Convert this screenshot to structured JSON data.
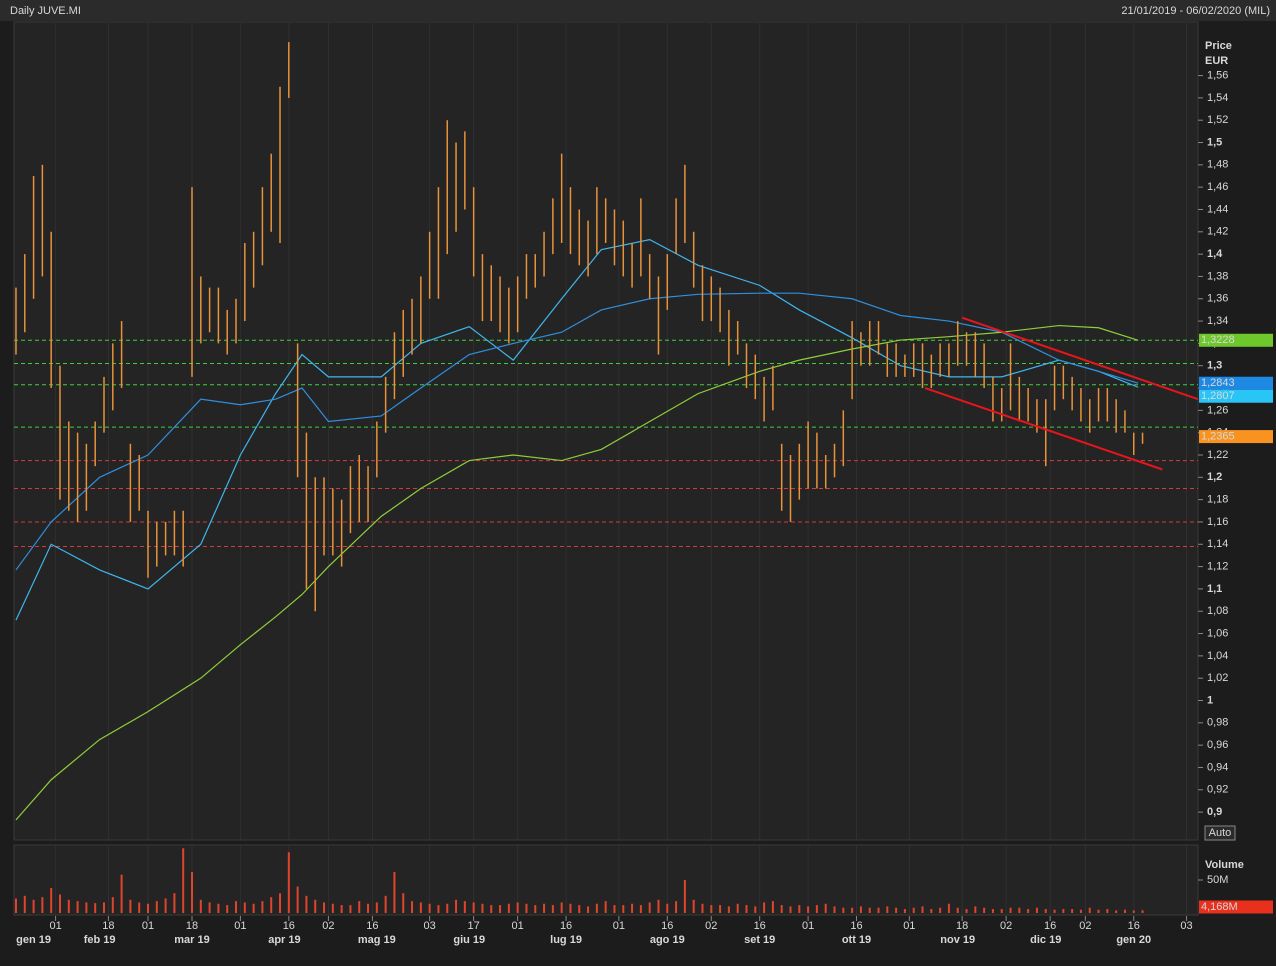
{
  "chart_data": {
    "type": "ohlc",
    "title": "Daily JUVE.MI",
    "subtitle": "21/01/2019 - 06/02/2020 (MIL)",
    "y_label": "Price",
    "y_unit": "EUR",
    "auto_label": "Auto",
    "color": "#e8923a",
    "x": [
      0,
      2,
      4,
      6,
      8,
      10,
      12,
      14,
      16,
      18,
      20,
      22,
      24,
      26,
      28,
      30,
      32,
      34,
      36,
      38,
      40,
      42,
      44,
      46,
      48,
      50,
      52,
      54,
      56,
      58,
      60,
      62,
      64,
      66,
      68,
      70,
      72,
      74,
      76,
      78,
      80,
      82,
      84,
      86,
      88,
      90,
      92,
      94,
      96,
      98,
      100,
      102,
      104,
      106,
      108,
      110,
      112,
      114,
      116,
      118,
      120,
      122,
      124,
      126,
      128,
      130,
      132,
      134,
      136,
      138,
      140,
      142,
      144,
      146,
      148,
      150,
      152,
      154,
      156,
      158,
      160,
      162,
      164,
      166,
      168,
      170,
      172,
      174,
      176,
      178,
      180,
      182,
      184,
      186,
      188,
      190,
      192,
      194,
      196,
      198,
      200,
      202,
      204,
      206,
      208,
      210,
      212,
      214,
      216,
      218,
      220,
      222,
      224,
      226,
      228,
      230,
      232,
      234,
      236,
      238,
      240,
      242,
      244,
      246,
      248,
      250,
      252,
      254,
      256
    ],
    "high": [
      1.37,
      1.4,
      1.47,
      1.48,
      1.42,
      1.3,
      1.25,
      1.24,
      1.23,
      1.25,
      1.29,
      1.32,
      1.34,
      1.23,
      1.22,
      1.17,
      1.16,
      1.16,
      1.17,
      1.17,
      1.46,
      1.38,
      1.37,
      1.37,
      1.35,
      1.36,
      1.41,
      1.42,
      1.46,
      1.49,
      1.55,
      1.59,
      1.32,
      1.24,
      1.2,
      1.2,
      1.19,
      1.18,
      1.21,
      1.22,
      1.21,
      1.25,
      1.29,
      1.33,
      1.35,
      1.36,
      1.38,
      1.42,
      1.46,
      1.52,
      1.5,
      1.51,
      1.46,
      1.4,
      1.39,
      1.38,
      1.37,
      1.38,
      1.4,
      1.4,
      1.42,
      1.45,
      1.49,
      1.46,
      1.44,
      1.43,
      1.46,
      1.45,
      1.44,
      1.43,
      1.41,
      1.45,
      1.4,
      1.38,
      1.4,
      1.45,
      1.48,
      1.42,
      1.39,
      1.38,
      1.37,
      1.35,
      1.34,
      1.32,
      1.31,
      1.29,
      1.3,
      1.23,
      1.22,
      1.23,
      1.25,
      1.24,
      1.22,
      1.23,
      1.26,
      1.34,
      1.33,
      1.34,
      1.34,
      1.32,
      1.32,
      1.31,
      1.32,
      1.32,
      1.31,
      1.32,
      1.32,
      1.34,
      1.33,
      1.33,
      1.32,
      1.29,
      1.28,
      1.32,
      1.29,
      1.28,
      1.27,
      1.27,
      1.3,
      1.3,
      1.29,
      1.28,
      1.27,
      1.28,
      1.28,
      1.27,
      1.26,
      1.24,
      1.24
    ],
    "low": [
      1.31,
      1.33,
      1.36,
      1.38,
      1.28,
      1.18,
      1.17,
      1.16,
      1.17,
      1.21,
      1.24,
      1.26,
      1.28,
      1.16,
      1.17,
      1.11,
      1.12,
      1.13,
      1.13,
      1.12,
      1.29,
      1.32,
      1.33,
      1.32,
      1.31,
      1.32,
      1.34,
      1.37,
      1.39,
      1.42,
      1.41,
      1.54,
      1.2,
      1.1,
      1.08,
      1.13,
      1.13,
      1.12,
      1.15,
      1.16,
      1.16,
      1.2,
      1.24,
      1.27,
      1.29,
      1.31,
      1.32,
      1.36,
      1.36,
      1.4,
      1.42,
      1.44,
      1.38,
      1.34,
      1.34,
      1.33,
      1.32,
      1.33,
      1.36,
      1.37,
      1.38,
      1.4,
      1.41,
      1.4,
      1.39,
      1.38,
      1.4,
      1.41,
      1.39,
      1.38,
      1.37,
      1.38,
      1.36,
      1.31,
      1.35,
      1.4,
      1.41,
      1.37,
      1.34,
      1.34,
      1.33,
      1.3,
      1.31,
      1.28,
      1.27,
      1.25,
      1.26,
      1.17,
      1.16,
      1.18,
      1.19,
      1.19,
      1.19,
      1.2,
      1.21,
      1.27,
      1.3,
      1.3,
      1.31,
      1.29,
      1.29,
      1.29,
      1.29,
      1.28,
      1.28,
      1.29,
      1.29,
      1.3,
      1.3,
      1.29,
      1.28,
      1.25,
      1.25,
      1.26,
      1.25,
      1.25,
      1.24,
      1.21,
      1.26,
      1.27,
      1.26,
      1.25,
      1.24,
      1.25,
      1.25,
      1.24,
      1.24,
      1.22,
      1.23
    ],
    "xlim": [
      -0.45,
      268.6
    ],
    "ylim": [
      0.875,
      1.608
    ],
    "yticks": [
      {
        "value": 0.9,
        "label": "0,9"
      },
      {
        "value": 0.92,
        "label": "0,92"
      },
      {
        "value": 0.94,
        "label": "0,94"
      },
      {
        "value": 0.96,
        "label": "0,96"
      },
      {
        "value": 0.98,
        "label": "0,98"
      },
      1,
      {
        "value": 1.02,
        "label": "1,02"
      },
      {
        "value": 1.04,
        "label": "1,04"
      },
      {
        "value": 1.06,
        "label": "1,06"
      },
      {
        "value": 1.08,
        "label": "1,08"
      },
      {
        "value": 1.1,
        "label": "1,1"
      },
      {
        "value": 1.12,
        "label": "1,12"
      },
      {
        "value": 1.14,
        "label": "1,14"
      },
      {
        "value": 1.16,
        "label": "1,16"
      },
      {
        "value": 1.18,
        "label": "1,18"
      },
      {
        "value": 1.2,
        "label": "1,2"
      },
      {
        "value": 1.22,
        "label": "1,22"
      },
      {
        "value": 1.24,
        "label": "1,24"
      },
      {
        "value": 1.26,
        "label": "1,26"
      },
      {
        "value": 1.28,
        "label": "1,28"
      },
      {
        "value": 1.3,
        "label": "1,3"
      },
      {
        "value": 1.32,
        "label": "1,32"
      },
      {
        "value": 1.34,
        "label": "1,34"
      },
      {
        "value": 1.36,
        "label": "1,36"
      },
      {
        "value": 1.38,
        "label": "1,38"
      },
      {
        "value": 1.4,
        "label": "1,4"
      },
      {
        "value": 1.42,
        "label": "1,42"
      },
      {
        "value": 1.44,
        "label": "1,44"
      },
      {
        "value": 1.46,
        "label": "1,46"
      },
      {
        "value": 1.48,
        "label": "1,48"
      },
      {
        "value": 1.5,
        "label": "1,5"
      },
      {
        "value": 1.52,
        "label": "1,52"
      },
      {
        "value": 1.54,
        "label": "1,54"
      },
      {
        "value": 1.56,
        "label": "1,56"
      }
    ],
    "xticks": [
      {
        "value": 9,
        "label": "01"
      },
      {
        "value": 21,
        "label": "18"
      },
      {
        "value": 30,
        "label": "01"
      },
      {
        "value": 40,
        "label": "18"
      },
      {
        "value": 51,
        "label": "01"
      },
      {
        "value": 62,
        "label": "16"
      },
      {
        "value": 71,
        "label": "02"
      },
      {
        "value": 81,
        "label": "16"
      },
      {
        "value": 94,
        "label": "03"
      },
      {
        "value": 104,
        "label": "17"
      },
      {
        "value": 114,
        "label": "01"
      },
      {
        "value": 125,
        "label": "16"
      },
      {
        "value": 137,
        "label": "01"
      },
      {
        "value": 148,
        "label": "16"
      },
      {
        "value": 158,
        "label": "02"
      },
      {
        "value": 169,
        "label": "16"
      },
      {
        "value": 180,
        "label": "01"
      },
      {
        "value": 191,
        "label": "16"
      },
      {
        "value": 203,
        "label": "01"
      },
      {
        "value": 215,
        "label": "18"
      },
      {
        "value": 225,
        "label": "02"
      },
      {
        "value": 235,
        "label": "16"
      },
      {
        "value": 243,
        "label": "02"
      },
      {
        "value": 254,
        "label": "16"
      },
      {
        "value": 266,
        "label": "03"
      }
    ],
    "month_ticks": [
      {
        "value": 4,
        "label": "gen 19"
      },
      {
        "value": 19,
        "label": "feb 19"
      },
      {
        "value": 40,
        "label": "mar 19"
      },
      {
        "value": 61,
        "label": "apr 19"
      },
      {
        "value": 82,
        "label": "mag 19"
      },
      {
        "value": 103,
        "label": "giu 19"
      },
      {
        "value": 125,
        "label": "lug 19"
      },
      {
        "value": 148,
        "label": "ago 19"
      },
      {
        "value": 169,
        "label": "set 19"
      },
      {
        "value": 191,
        "label": "ott 19"
      },
      {
        "value": 214,
        "label": "nov 19"
      },
      {
        "value": 234,
        "label": "dic 19"
      },
      {
        "value": 254,
        "label": "gen 20"
      }
    ],
    "moving_averages": {
      "x": [
        0,
        8,
        19,
        30,
        42,
        51,
        59,
        65,
        71,
        83,
        92,
        103,
        113,
        124,
        133,
        144,
        155,
        169,
        178,
        190,
        201,
        212,
        224,
        237,
        246,
        255
      ],
      "series": [
        {
          "color": "#3fb6ee",
          "values": [
            1.072,
            1.14,
            1.117,
            1.1,
            1.14,
            1.22,
            1.275,
            1.31,
            1.29,
            1.29,
            1.32,
            1.335,
            1.305,
            1.36,
            1.404,
            1.413,
            1.39,
            1.372,
            1.35,
            1.325,
            1.3,
            1.29,
            1.29,
            1.305,
            1.295,
            1.2807
          ]
        },
        {
          "color": "#2f8fde",
          "values": [
            1.117,
            1.16,
            1.2,
            1.22,
            1.27,
            1.265,
            1.27,
            1.28,
            1.25,
            1.255,
            1.28,
            1.31,
            1.32,
            1.33,
            1.35,
            1.36,
            1.364,
            1.365,
            1.365,
            1.36,
            1.345,
            1.34,
            1.33,
            1.305,
            1.295,
            1.2843
          ]
        },
        {
          "color": "#8fcf3a",
          "values": [
            0.893,
            0.929,
            0.965,
            0.99,
            1.02,
            1.05,
            1.075,
            1.095,
            1.12,
            1.165,
            1.19,
            1.215,
            1.22,
            1.215,
            1.225,
            1.25,
            1.275,
            1.295,
            1.305,
            1.315,
            1.323,
            1.326,
            1.33,
            1.336,
            1.334,
            1.3228
          ]
        }
      ]
    },
    "levels": [
      {
        "value": 1.3228,
        "color": "#3ccf3c"
      },
      {
        "value": 1.302,
        "color": "#3ccf3c"
      },
      {
        "value": 1.283,
        "color": "#3ccf3c"
      },
      {
        "value": 1.245,
        "color": "#3ccf3c"
      },
      {
        "value": 1.215,
        "color": "#d23c3c"
      },
      {
        "value": 1.19,
        "color": "#d23c3c"
      },
      {
        "value": 1.16,
        "color": "#d23c3c"
      },
      {
        "value": 1.138,
        "color": "#d23c3c"
      }
    ],
    "trendlines": [
      {
        "color": "#e8151b",
        "x": [
          215,
          268.6
        ],
        "values": [
          1.343,
          1.27
        ]
      },
      {
        "color": "#e8151b",
        "x": [
          206.6,
          260.5
        ],
        "values": [
          1.28,
          1.207
        ]
      }
    ],
    "tags": [
      {
        "value": 1.3228,
        "label": "1,3228",
        "color": "#6ec72b"
      },
      {
        "value": 1.2843,
        "label": "1,2843",
        "color": "#1e88e5"
      },
      {
        "value": 1.2807,
        "label": "1,2807",
        "color": "#29c5f6"
      },
      {
        "value": 1.2365,
        "label": "1,2365",
        "color": "#f7931e"
      }
    ],
    "volume": {
      "label": "Volume",
      "color": "#e0452b",
      "ylim": [
        0,
        103
      ],
      "yticks": [
        {
          "value": 50,
          "label": "50M"
        }
      ],
      "last": {
        "value": 4.168,
        "label": "4,168M"
      },
      "values": [
        22,
        26,
        20,
        24,
        38,
        28,
        20,
        18,
        16,
        15,
        16,
        24,
        58,
        20,
        16,
        14,
        18,
        22,
        30,
        98,
        62,
        20,
        16,
        14,
        12,
        18,
        16,
        14,
        18,
        24,
        30,
        92,
        40,
        26,
        20,
        16,
        14,
        12,
        12,
        18,
        14,
        16,
        26,
        62,
        30,
        18,
        16,
        14,
        12,
        14,
        20,
        18,
        16,
        14,
        12,
        12,
        14,
        16,
        14,
        12,
        14,
        12,
        16,
        14,
        12,
        10,
        14,
        18,
        12,
        12,
        14,
        12,
        16,
        20,
        14,
        18,
        50,
        20,
        14,
        12,
        12,
        10,
        14,
        12,
        10,
        16,
        18,
        12,
        10,
        12,
        10,
        12,
        14,
        10,
        8,
        8,
        10,
        8,
        8,
        10,
        8,
        6,
        8,
        10,
        6,
        8,
        14,
        8,
        6,
        10,
        8,
        6,
        6,
        8,
        8,
        6,
        8,
        6,
        5,
        6,
        6,
        5,
        8,
        5,
        6,
        4,
        5,
        4,
        4.168
      ]
    }
  }
}
